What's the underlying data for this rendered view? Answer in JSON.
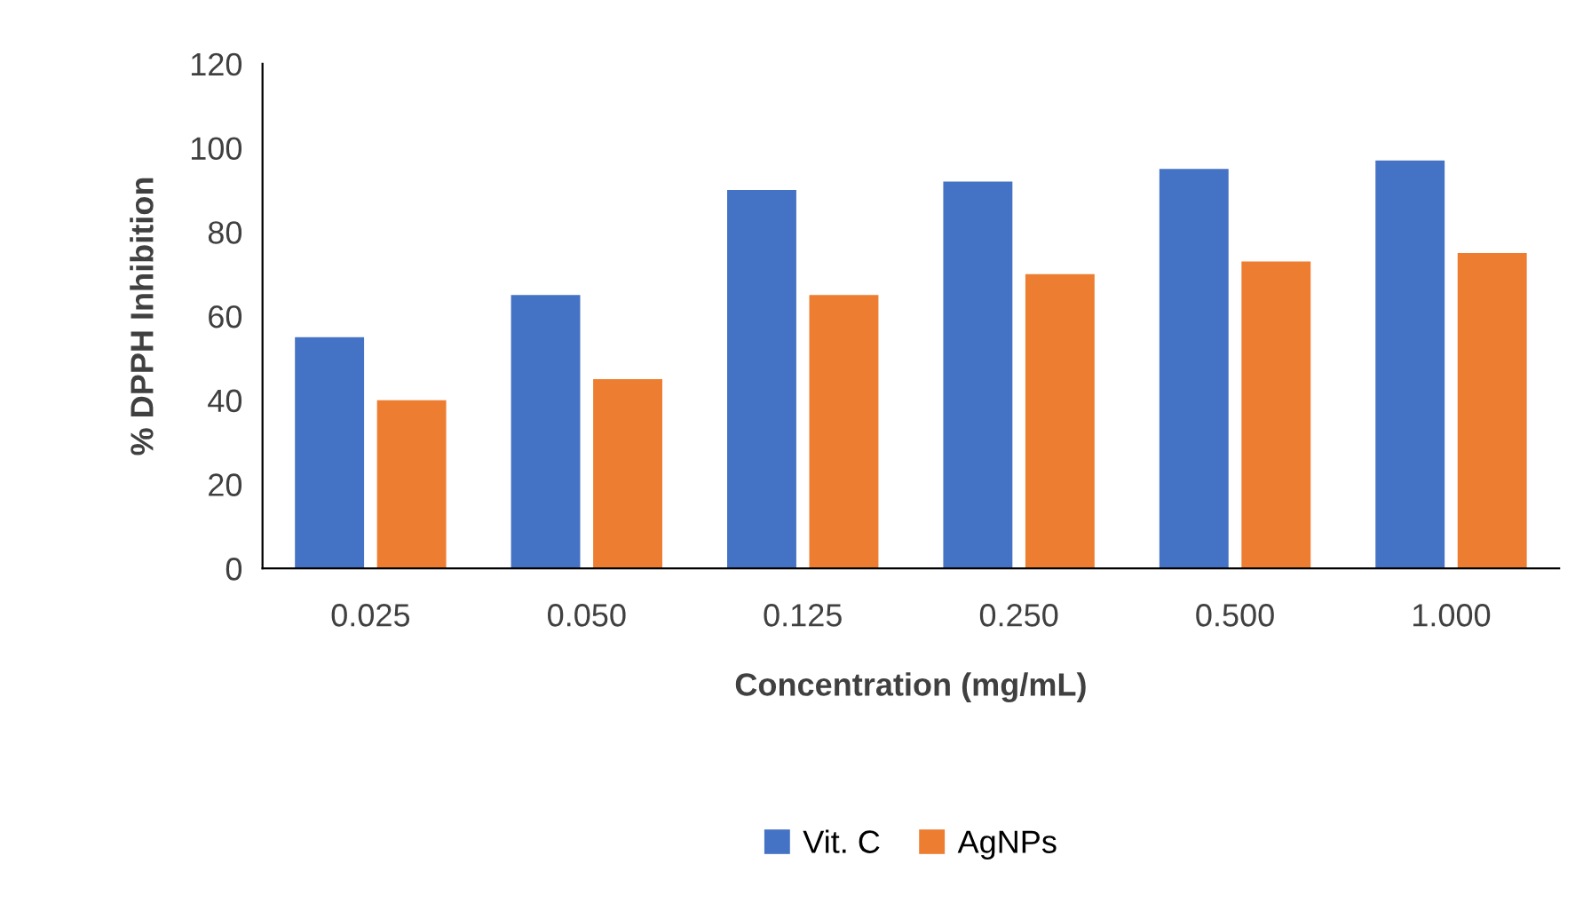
{
  "chart_data": {
    "type": "bar",
    "xlabel": "Concentration (mg/mL)",
    "ylabel": "% DPPH Inhibition",
    "categories": [
      "0.025",
      "0.050",
      "0.125",
      "0.250",
      "0.500",
      "1.000"
    ],
    "series": [
      {
        "name": "Vit. C",
        "color": "#4472c4",
        "values": [
          55,
          65,
          90,
          92,
          95,
          97
        ]
      },
      {
        "name": "AgNPs",
        "color": "#ed7d31",
        "values": [
          40,
          45,
          65,
          70,
          73,
          75
        ]
      }
    ],
    "ylim": [
      0,
      120
    ],
    "yticks": [
      0,
      20,
      40,
      60,
      80,
      100,
      120
    ],
    "grid": false,
    "legend": "bottom"
  }
}
